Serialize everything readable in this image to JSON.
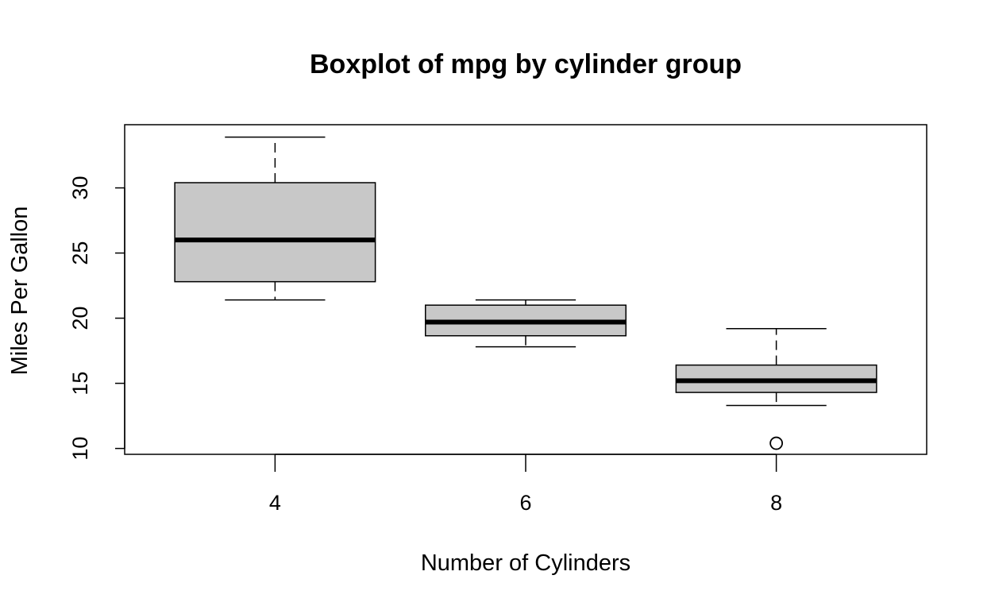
{
  "chart_data": {
    "type": "boxplot",
    "title": "Boxplot of mpg by cylinder group",
    "xlabel": "Number of Cylinders",
    "ylabel": "Miles Per Gallon",
    "categories": [
      "4",
      "6",
      "8"
    ],
    "y_ticks": [
      "10",
      "15",
      "20",
      "25",
      "30"
    ],
    "ylim": [
      9.55,
      34.85
    ],
    "grid": false,
    "box_fill": "#c8c8c8",
    "boxes": [
      {
        "category": "4",
        "whisker_low": 21.4,
        "q1": 22.8,
        "median": 26.0,
        "q3": 30.4,
        "whisker_high": 33.9,
        "outliers": []
      },
      {
        "category": "6",
        "whisker_low": 17.8,
        "q1": 18.65,
        "median": 19.7,
        "q3": 21.0,
        "whisker_high": 21.4,
        "outliers": []
      },
      {
        "category": "8",
        "whisker_low": 13.3,
        "q1": 14.3,
        "median": 15.2,
        "q3": 16.4,
        "whisker_high": 19.2,
        "outliers": [
          10.4
        ]
      }
    ]
  }
}
